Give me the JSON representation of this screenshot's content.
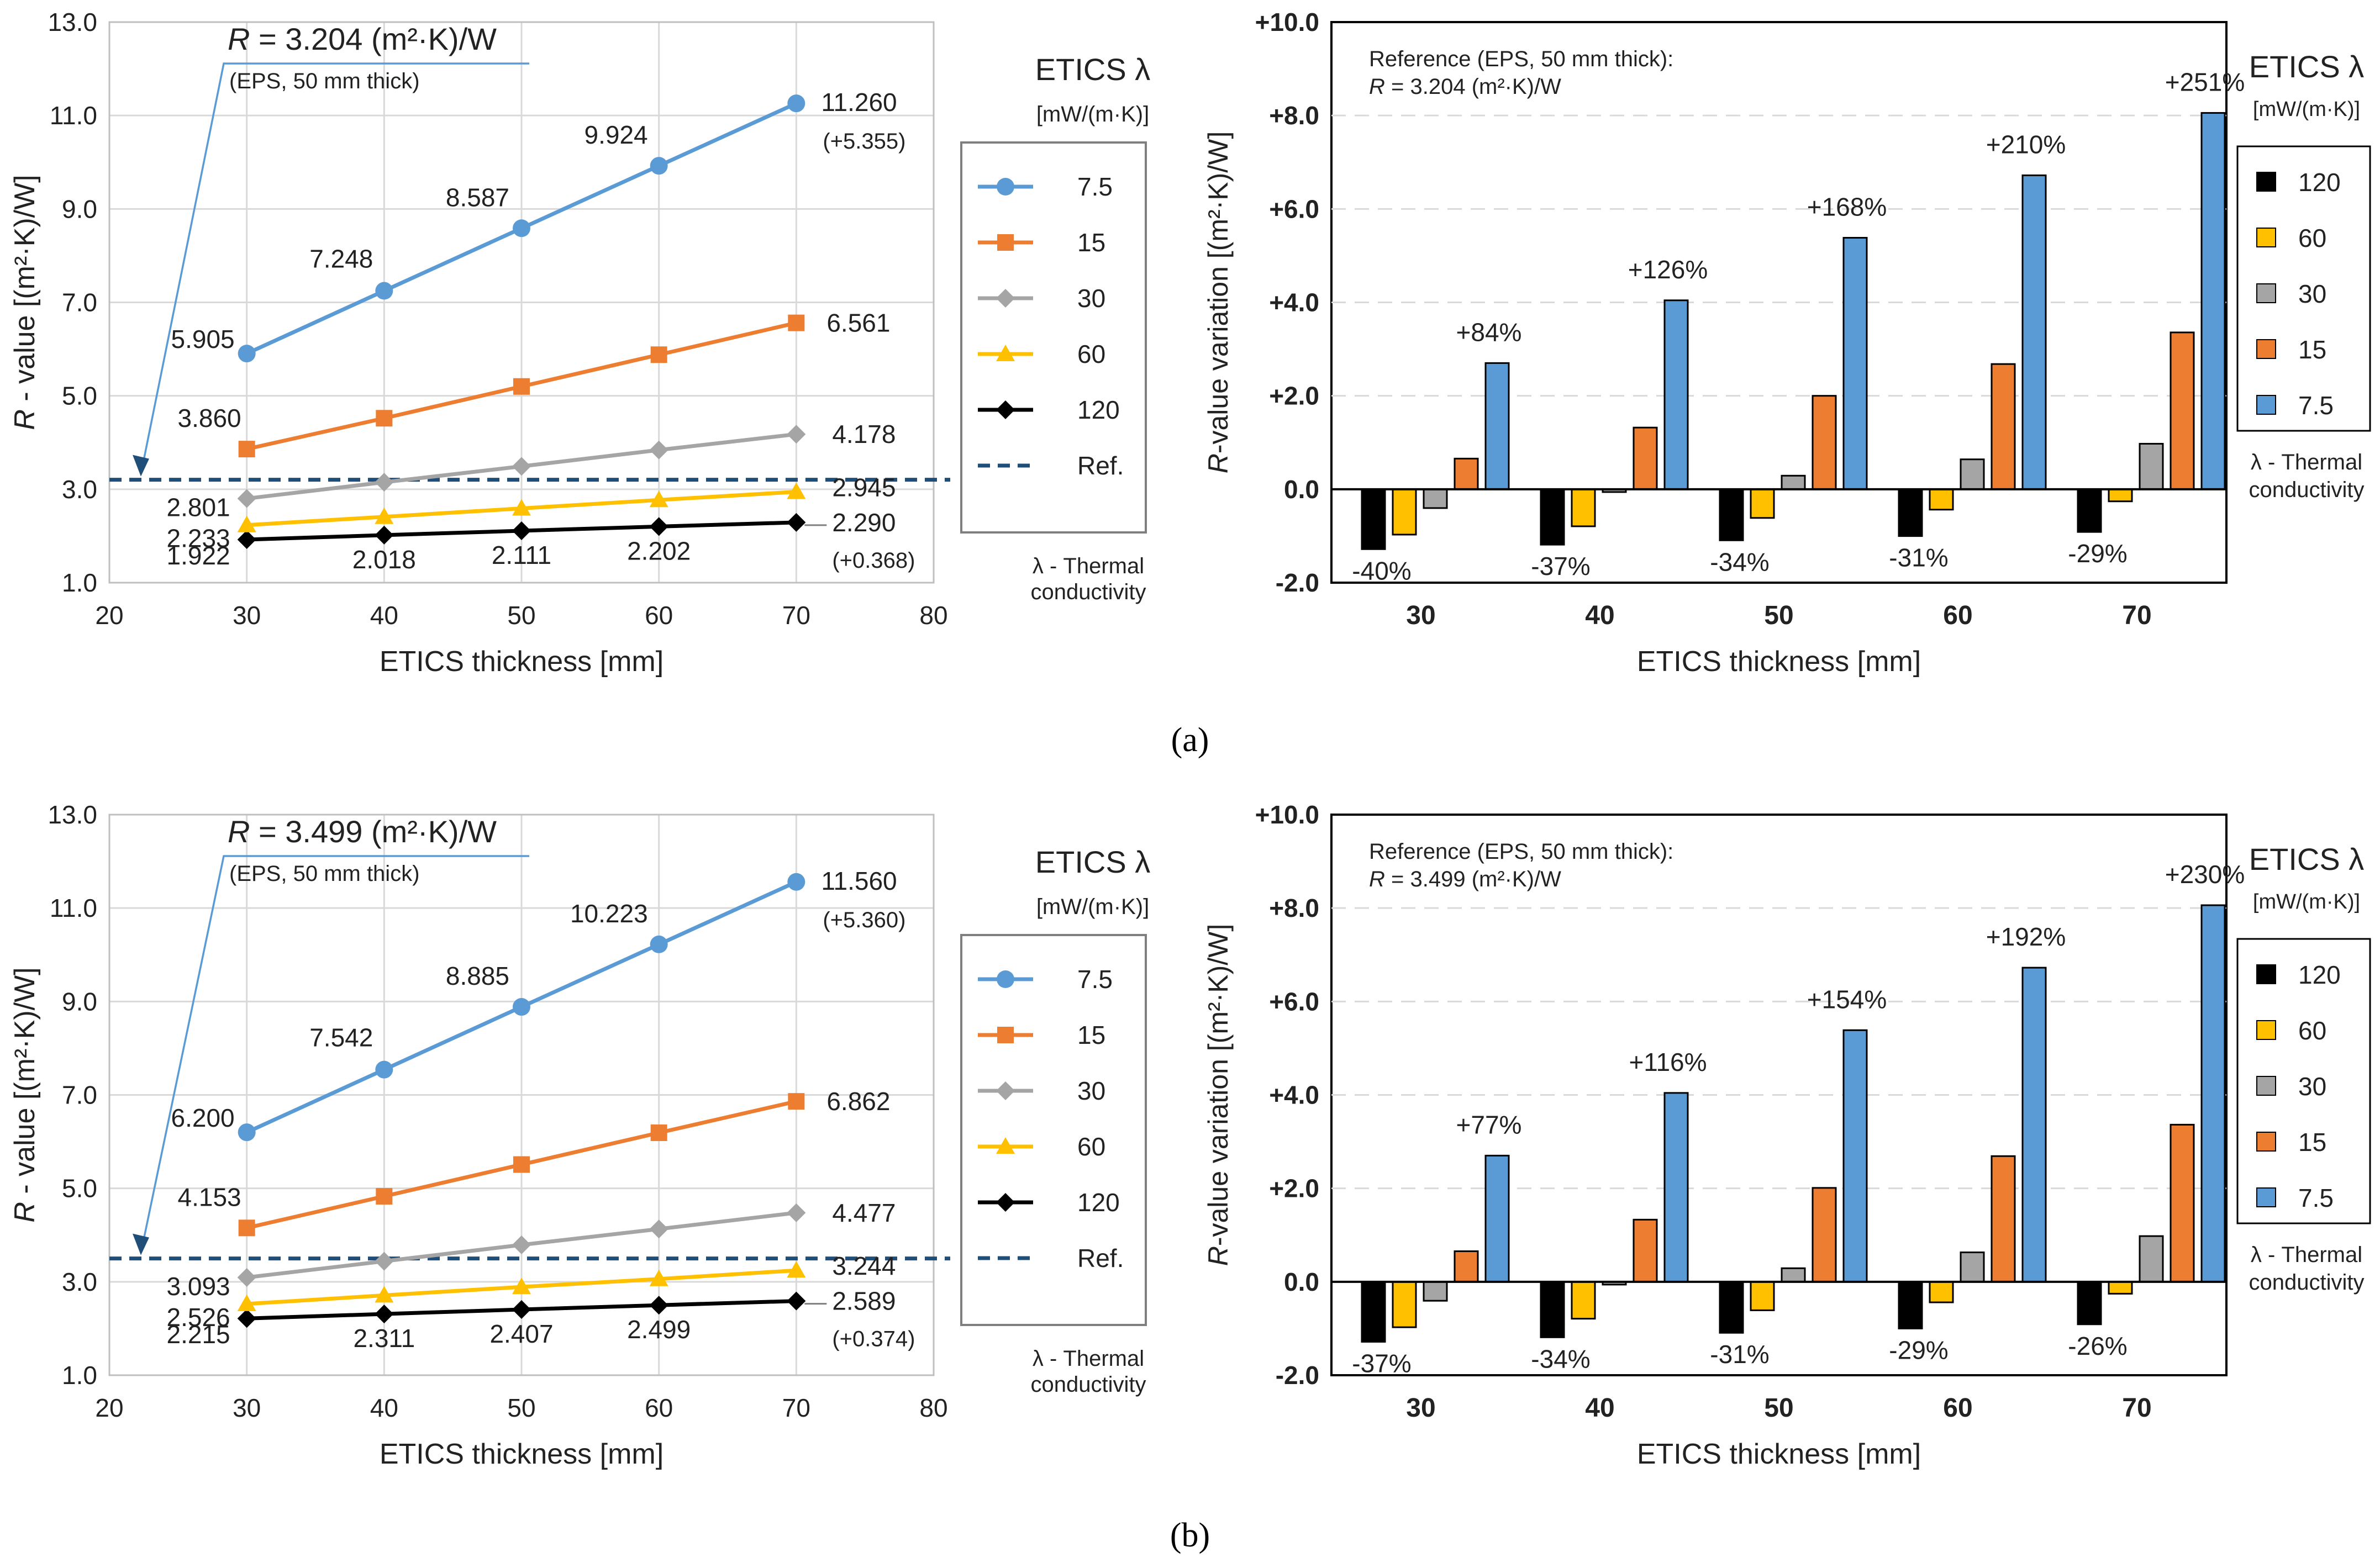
{
  "colors": {
    "blue": "#5b9bd5",
    "orange": "#ed7d31",
    "gray": "#a5a5a5",
    "yellow": "#ffc000",
    "black": "#000000",
    "ref": "#1f4e79",
    "grid": "#d9d9d9"
  },
  "panel_labels": [
    "(a)",
    "(b)"
  ],
  "chart_data": [
    {
      "type": "line",
      "panel": "a",
      "xlabel": "ETICS thickness [mm]",
      "ylabel_r": "R",
      "ylabel_rest": " - value  [(m²·K)/W]",
      "x": [
        30,
        40,
        50,
        60,
        70
      ],
      "xticks": [
        "20",
        "30",
        "40",
        "50",
        "60",
        "70",
        "80"
      ],
      "xlim": [
        20,
        80
      ],
      "yticks": [
        "1.0",
        "3.0",
        "5.0",
        "7.0",
        "9.0",
        "11.0",
        "13.0"
      ],
      "ylim": [
        1,
        13
      ],
      "legend_title": "ETICS λ",
      "legend_unit": "[mW/(m·K)]",
      "legend_note_1": "λ - Thermal",
      "legend_note_2": "conductivity",
      "ref_label": "Ref.",
      "ref_value": 3.204,
      "ref_text_r": "R",
      "ref_text_rest": " = 3.204 (m²·K)/W",
      "ref_sub": "(EPS, 50 mm thick)",
      "series": [
        {
          "name": "7.5",
          "values": [
            5.905,
            7.248,
            8.587,
            9.924,
            11.26
          ],
          "labels": [
            "5.905",
            "7.248",
            "8.587",
            "9.924",
            "11.260"
          ],
          "marker": "circle"
        },
        {
          "name": "15",
          "values": [
            3.86,
            4.52,
            5.2,
            5.88,
            6.561
          ],
          "labels": [
            "3.860",
            "6.561"
          ],
          "marker": "square"
        },
        {
          "name": "30",
          "values": [
            2.801,
            3.15,
            3.49,
            3.84,
            4.178
          ],
          "labels": [
            "2.801",
            "4.178"
          ],
          "marker": "diamond"
        },
        {
          "name": "60",
          "values": [
            2.233,
            2.41,
            2.59,
            2.77,
            2.945
          ],
          "labels": [
            "2.233",
            "2.945"
          ],
          "marker": "triangle"
        },
        {
          "name": "120",
          "values": [
            1.922,
            2.018,
            2.111,
            2.202,
            2.29
          ],
          "labels": [
            "1.922",
            "2.018",
            "2.111",
            "2.202",
            "2.290"
          ],
          "marker": "diamond"
        }
      ],
      "delta_top": "(+5.355)",
      "delta_bottom": "(+0.368)"
    },
    {
      "type": "bar",
      "panel": "a",
      "xlabel": "ETICS thickness [mm]",
      "ylabel_r": "R",
      "ylabel_rest": "-value variation [(m²·K)/W]",
      "categories": [
        "30",
        "40",
        "50",
        "60",
        "70"
      ],
      "yticks": [
        "-2.0",
        "0.0",
        "+2.0",
        "+4.0",
        "+6.0",
        "+8.0",
        "+10.0"
      ],
      "ylim": [
        -2,
        10
      ],
      "ref_line1": "Reference (EPS, 50 mm thick):",
      "ref_line2_r": "R",
      "ref_line2_rest": " = 3.204 (m²·K)/W",
      "legend_title": "ETICS λ",
      "legend_unit": "[mW/(m·K)]",
      "legend_note_1": "λ - Thermal",
      "legend_note_2": "conductivity",
      "series": [
        {
          "name": "120",
          "values": [
            -1.282,
            -1.186,
            -1.093,
            -1.002,
            -0.914
          ]
        },
        {
          "name": "60",
          "values": [
            -0.971,
            -0.793,
            -0.614,
            -0.436,
            -0.259
          ]
        },
        {
          "name": "30",
          "values": [
            -0.403,
            -0.06,
            0.29,
            0.64,
            0.974
          ]
        },
        {
          "name": "15",
          "values": [
            0.656,
            1.32,
            2.0,
            2.68,
            3.357
          ]
        },
        {
          "name": "7.5",
          "values": [
            2.701,
            4.044,
            5.383,
            6.72,
            8.056
          ]
        }
      ],
      "pct_top": [
        "+84%",
        "+126%",
        "+168%",
        "+210%",
        "+251%"
      ],
      "pct_bottom": [
        "-40%",
        "-37%",
        "-34%",
        "-31%",
        "-29%"
      ]
    },
    {
      "type": "line",
      "panel": "b",
      "xlabel": "ETICS thickness [mm]",
      "ylabel_r": "R",
      "ylabel_rest": " - value  [(m²·K)/W]",
      "x": [
        30,
        40,
        50,
        60,
        70
      ],
      "xticks": [
        "20",
        "30",
        "40",
        "50",
        "60",
        "70",
        "80"
      ],
      "xlim": [
        20,
        80
      ],
      "yticks": [
        "1.0",
        "3.0",
        "5.0",
        "7.0",
        "9.0",
        "11.0",
        "13.0"
      ],
      "ylim": [
        1,
        13
      ],
      "legend_title": "ETICS λ",
      "legend_unit": "[mW/(m·K)]",
      "legend_note_1": "λ - Thermal",
      "legend_note_2": "conductivity",
      "ref_label": "Ref.",
      "ref_value": 3.499,
      "ref_text_r": "R",
      "ref_text_rest": " = 3.499 (m²·K)/W",
      "ref_sub": "(EPS, 50 mm thick)",
      "series": [
        {
          "name": "7.5",
          "values": [
            6.2,
            7.542,
            8.885,
            10.223,
            11.56
          ],
          "labels": [
            "6.200",
            "7.542",
            "8.885",
            "10.223",
            "11.560"
          ],
          "marker": "circle"
        },
        {
          "name": "15",
          "values": [
            4.153,
            4.83,
            5.51,
            6.19,
            6.862
          ],
          "labels": [
            "4.153",
            "6.862"
          ],
          "marker": "square"
        },
        {
          "name": "30",
          "values": [
            3.093,
            3.44,
            3.79,
            4.13,
            4.477
          ],
          "labels": [
            "3.093",
            "4.477"
          ],
          "marker": "diamond"
        },
        {
          "name": "60",
          "values": [
            2.526,
            2.71,
            2.89,
            3.06,
            3.244
          ],
          "labels": [
            "2.526",
            "3.244"
          ],
          "marker": "triangle"
        },
        {
          "name": "120",
          "values": [
            2.215,
            2.311,
            2.407,
            2.499,
            2.589
          ],
          "labels": [
            "2.215",
            "2.311",
            "2.407",
            "2.499",
            "2.589"
          ],
          "marker": "diamond"
        }
      ],
      "delta_top": "(+5.360)",
      "delta_bottom": "(+0.374)"
    },
    {
      "type": "bar",
      "panel": "b",
      "xlabel": "ETICS thickness [mm]",
      "ylabel_r": "R",
      "ylabel_rest": "-value variation [(m²·K)/W]",
      "categories": [
        "30",
        "40",
        "50",
        "60",
        "70"
      ],
      "yticks": [
        "-2.0",
        "0.0",
        "+2.0",
        "+4.0",
        "+6.0",
        "+8.0",
        "+10.0"
      ],
      "ylim": [
        -2,
        10
      ],
      "ref_line1": "Reference (EPS, 50 mm thick):",
      "ref_line2_r": "R",
      "ref_line2_rest": " = 3.499 (m²·K)/W",
      "legend_title": "ETICS λ",
      "legend_unit": "[mW/(m·K)]",
      "legend_note_1": "λ - Thermal",
      "legend_note_2": "conductivity",
      "series": [
        {
          "name": "120",
          "values": [
            -1.284,
            -1.188,
            -1.092,
            -1.0,
            -0.91
          ]
        },
        {
          "name": "60",
          "values": [
            -0.973,
            -0.79,
            -0.61,
            -0.44,
            -0.255
          ]
        },
        {
          "name": "30",
          "values": [
            -0.406,
            -0.06,
            0.29,
            0.63,
            0.978
          ]
        },
        {
          "name": "15",
          "values": [
            0.654,
            1.33,
            2.01,
            2.69,
            3.363
          ]
        },
        {
          "name": "7.5",
          "values": [
            2.701,
            4.043,
            5.386,
            6.724,
            8.061
          ]
        }
      ],
      "pct_top": [
        "+77%",
        "+116%",
        "+154%",
        "+192%",
        "+230%"
      ],
      "pct_bottom": [
        "-37%",
        "-34%",
        "-31%",
        "-29%",
        "-26%"
      ]
    }
  ]
}
